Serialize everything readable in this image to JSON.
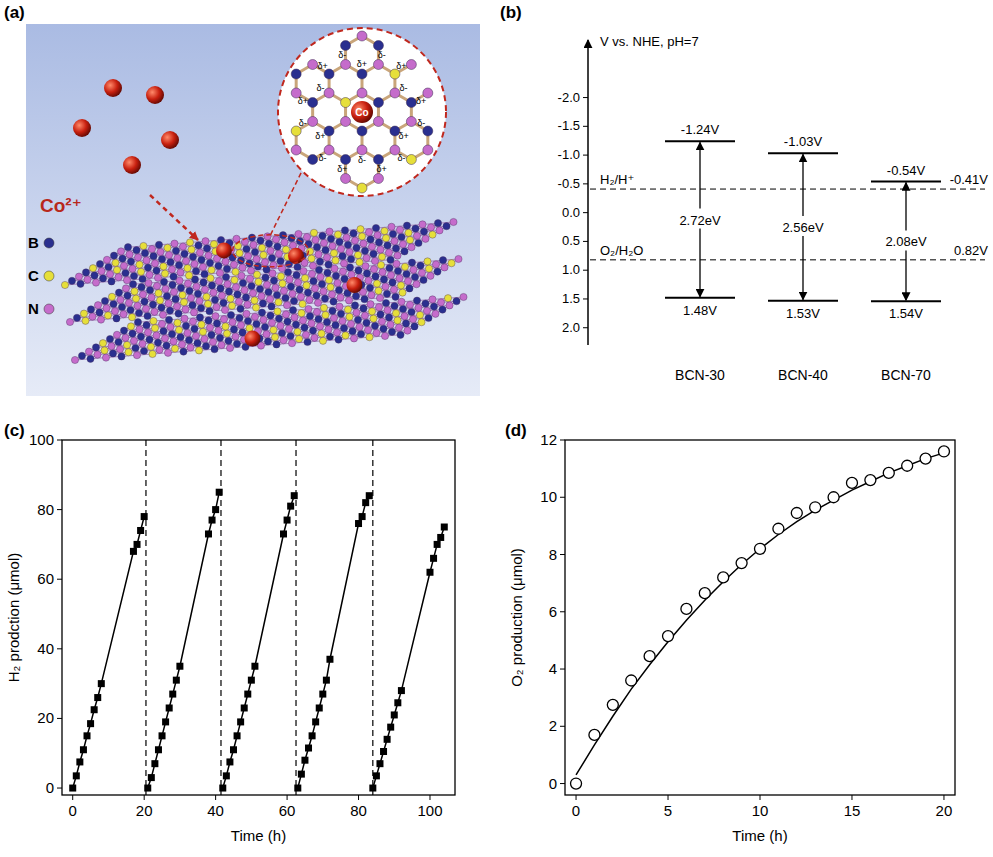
{
  "diagram": {
    "panel_label": "(a)",
    "ion": "Co²⁺",
    "center_atom": "Co",
    "charges": [
      "δ+",
      "δ-"
    ],
    "legend": [
      {
        "text": "B",
        "color": "#2a2f8f"
      },
      {
        "text": "C",
        "color": "#e6df3a"
      },
      {
        "text": "N",
        "color": "#c56ccb"
      }
    ]
  },
  "chart_data": [
    {
      "type": "band",
      "panel_label": "(b)",
      "ylabel": "V vs. NHE, pH=7",
      "categories": [
        "BCN-30",
        "BCN-40",
        "BCN-70"
      ],
      "ylim": [
        2.3,
        -3.0
      ],
      "yticks": [
        {
          "value": -2.0,
          "label": "-2.0"
        },
        -1.5,
        {
          "value": -1.0,
          "label": "-1.0"
        },
        -0.5,
        {
          "value": 0.0,
          "label": "0.0"
        },
        0.5,
        {
          "value": 1.0,
          "label": "1.0"
        },
        1.5,
        {
          "value": 2.0,
          "label": "2.0"
        }
      ],
      "series": [
        {
          "values": [
            -1.24,
            -1.03,
            -0.54
          ],
          "value_labels": [
            "-1.24V",
            "-1.03V",
            "-0.54V"
          ]
        },
        {
          "values": [
            1.48,
            1.53,
            1.54
          ],
          "value_labels": [
            "1.48V",
            "1.53V",
            "1.54V"
          ]
        }
      ],
      "band_gaps": [
        2.72,
        2.56,
        2.08
      ],
      "band_gap_labels": [
        "2.72eV",
        "2.56eV",
        "2.08eV"
      ],
      "reference_lines": [
        {
          "value": -0.41,
          "label": "H₂/H⁺",
          "value_label": "-0.41V"
        },
        {
          "value": 0.82,
          "label": "O₂/H₂O",
          "value_label": "0.82V"
        }
      ]
    },
    {
      "type": "line",
      "panel_label": "(c)",
      "xlabel": "Time (h)",
      "ylabel": "H₂ prodction (μmol)",
      "xlim": [
        -3,
        107
      ],
      "ylim": [
        -2,
        100
      ],
      "xticks": [
        0,
        20,
        40,
        60,
        80,
        100
      ],
      "yticks": [
        0,
        20,
        40,
        60,
        80,
        100
      ],
      "cycle_boundaries": [
        20.5,
        41.5,
        62.5,
        84
      ],
      "series": [
        {
          "color": "#000000",
          "marker": "square",
          "line_style": "solid",
          "x": [
            0,
            1,
            2,
            3,
            4,
            5,
            6,
            7,
            8,
            17,
            18,
            19,
            20
          ],
          "values": [
            0,
            3.5,
            7.5,
            11,
            15,
            18.5,
            22.5,
            26,
            30,
            68,
            70,
            74,
            78
          ]
        },
        {
          "color": "#000000",
          "marker": "square",
          "line_style": "solid",
          "x": [
            21,
            22,
            23,
            24,
            25,
            26,
            27,
            28,
            29,
            30,
            38,
            39,
            40,
            41
          ],
          "values": [
            0,
            3,
            7,
            11,
            15,
            19,
            23,
            27,
            31,
            35,
            73,
            77,
            80,
            85
          ]
        },
        {
          "color": "#000000",
          "marker": "square",
          "line_style": "solid",
          "x": [
            42,
            43,
            44,
            45,
            46,
            47,
            48,
            49,
            50,
            51,
            59,
            60,
            61,
            62
          ],
          "values": [
            0,
            3.5,
            7.5,
            11,
            15,
            19,
            23,
            27,
            31,
            35,
            73,
            77,
            81,
            84
          ]
        },
        {
          "color": "#000000",
          "marker": "square",
          "line_style": "solid",
          "x": [
            63,
            64,
            65,
            66,
            67,
            68,
            69,
            70,
            71,
            72,
            80,
            81,
            82,
            83
          ],
          "values": [
            0,
            4,
            8,
            11.5,
            15,
            19,
            23,
            27,
            31,
            37,
            76,
            78,
            82,
            84
          ]
        },
        {
          "color": "#000000",
          "marker": "square",
          "line_style": "solid",
          "x": [
            84,
            85,
            86,
            87,
            88,
            89,
            90,
            91,
            92,
            100,
            101,
            102,
            103,
            104
          ],
          "values": [
            0,
            3.5,
            7,
            10.5,
            14,
            17.5,
            21,
            24.5,
            28,
            62,
            66,
            70,
            72,
            75
          ]
        }
      ]
    },
    {
      "type": "scatter",
      "panel_label": "(d)",
      "xlabel": "Time (h)",
      "ylabel": "O₂ production (μmol)",
      "xlim": [
        -0.6,
        20.6
      ],
      "ylim": [
        -0.4,
        12
      ],
      "xticks": [
        0,
        5,
        10,
        15,
        20
      ],
      "yticks": [
        0,
        2,
        4,
        6,
        8,
        10,
        12
      ],
      "series": [
        {
          "type": "line",
          "color": "#000000",
          "line_style": "solid",
          "x": [
            0,
            1,
            2,
            3,
            4,
            5,
            6,
            7,
            8,
            9,
            10,
            11,
            12,
            13,
            14,
            15,
            16,
            17,
            18,
            19,
            20
          ],
          "values": [
            0.3,
            1.35,
            2.35,
            3.3,
            4.15,
            4.95,
            5.7,
            6.4,
            7.05,
            7.65,
            8.2,
            8.7,
            9.15,
            9.55,
            9.9,
            10.25,
            10.55,
            10.85,
            11.1,
            11.35,
            11.55
          ]
        },
        {
          "type": "scatter",
          "color": "#000000",
          "marker": "circle",
          "x": [
            0,
            1,
            2,
            3,
            4,
            5,
            6,
            7,
            8,
            9,
            10,
            11,
            12,
            13,
            14,
            15,
            16,
            17,
            18,
            19,
            20
          ],
          "values": [
            0,
            1.7,
            2.75,
            3.6,
            4.45,
            5.15,
            6.1,
            6.65,
            7.2,
            7.7,
            8.2,
            8.9,
            9.45,
            9.65,
            10.0,
            10.5,
            10.6,
            10.85,
            11.1,
            11.35,
            11.6
          ]
        }
      ]
    }
  ]
}
